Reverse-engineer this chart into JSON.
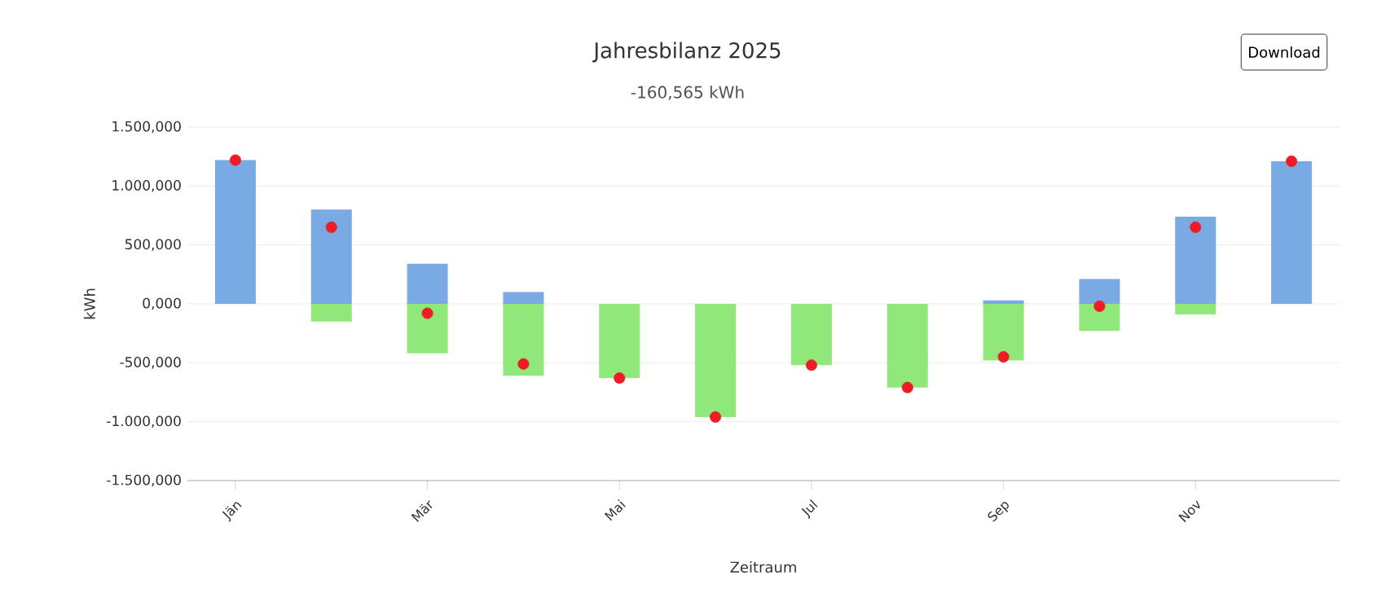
{
  "chart_data": {
    "type": "bar",
    "title": "Jahresbilanz 2025",
    "subtitle": "-160,565 kWh",
    "xlabel": "Zeitraum",
    "ylabel": "kWh",
    "categories": [
      "Jän",
      null,
      "Mär",
      null,
      "Mai",
      null,
      "Jul",
      null,
      "Sep",
      null,
      "Nov",
      null
    ],
    "stacked": true,
    "series": [
      {
        "color": "#7aaae4",
        "values": [
          1220,
          800,
          340,
          100,
          null,
          null,
          null,
          null,
          30,
          210,
          740,
          1210
        ]
      },
      {
        "color": "#90e87a",
        "values": [
          null,
          -150,
          -420,
          -610,
          -630,
          -960,
          -520,
          -710,
          -480,
          -230,
          -90,
          null
        ]
      },
      {
        "type": "scatter",
        "marker": "circle",
        "color": "#ee1c25",
        "values": [
          1220,
          650,
          -80,
          -510,
          -630,
          -960,
          -520,
          -710,
          -450,
          -20,
          650,
          1210
        ]
      }
    ],
    "ylim": [
      -1500,
      1500
    ],
    "yticks": [
      {
        "value": -1500,
        "label": "-1.500,000"
      },
      {
        "value": -1000,
        "label": "-1.000,000"
      },
      {
        "value": -500,
        "label": "-500,000"
      },
      {
        "value": 0,
        "label": "0,000"
      },
      {
        "value": 500,
        "label": "500,000"
      },
      {
        "value": 1000,
        "label": "1.000,000"
      },
      {
        "value": 1500,
        "label": "1.500,000"
      }
    ],
    "grid": "y",
    "annotations": [
      "Download"
    ]
  }
}
